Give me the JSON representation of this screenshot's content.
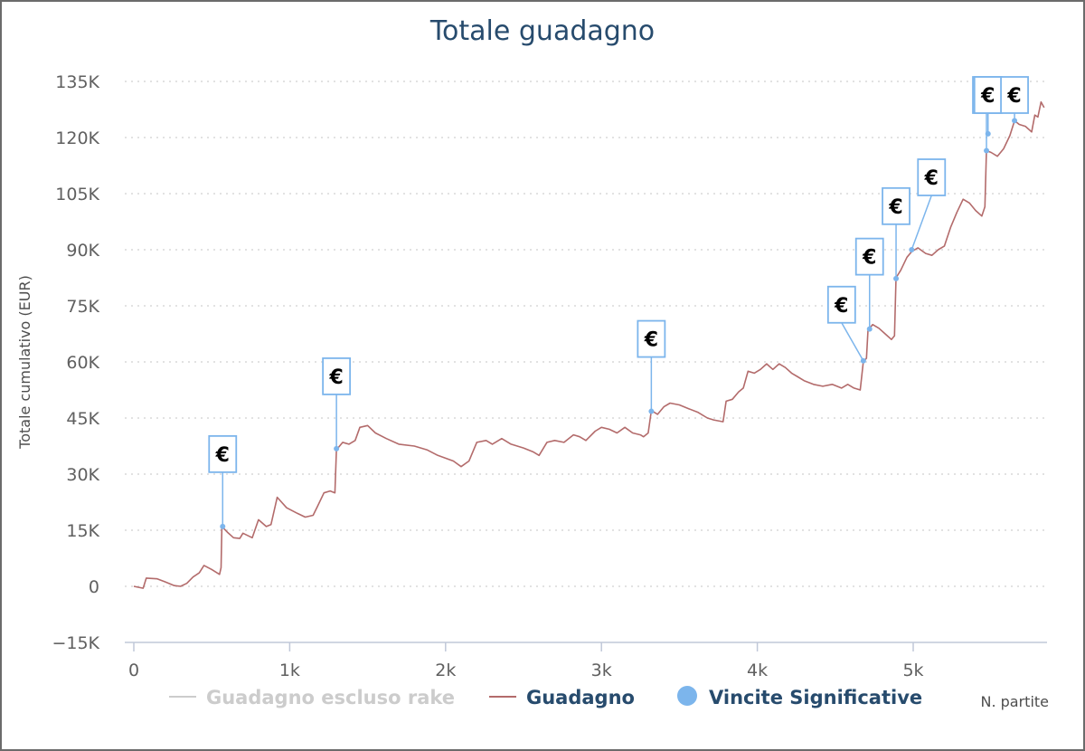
{
  "chart_data": {
    "type": "line",
    "title": "Totale guadagno",
    "ylabel": "Totale cumulativo (EUR)",
    "xlabel": "N. partite",
    "ylim": [
      -15000,
      135000
    ],
    "xlim": [
      0,
      5850
    ],
    "y_ticks": [
      -15000,
      0,
      15000,
      30000,
      45000,
      60000,
      75000,
      90000,
      105000,
      120000,
      135000
    ],
    "y_tick_labels": [
      "−15K",
      "0",
      "15K",
      "30K",
      "45K",
      "60K",
      "75K",
      "90K",
      "105K",
      "120K",
      "135K"
    ],
    "x_ticks": [
      0,
      1000,
      2000,
      3000,
      4000,
      5000
    ],
    "x_tick_labels": [
      "0",
      "1k",
      "2k",
      "3k",
      "4k",
      "5k"
    ],
    "grid": "horizontal dotted",
    "legend_position": "bottom",
    "legend": [
      {
        "name": "Guadagno escluso rake",
        "color": "#cccccc",
        "marker": "line",
        "hidden": true
      },
      {
        "name": "Guadagno",
        "color": "#b36b6b",
        "marker": "line"
      },
      {
        "name": "Vincite Significative",
        "color": "#7cb5ec",
        "marker": "circle"
      }
    ],
    "series": [
      {
        "name": "Guadagno",
        "color": "#b36b6b",
        "points": [
          [
            0,
            0
          ],
          [
            60,
            -500
          ],
          [
            80,
            2200
          ],
          [
            150,
            2000
          ],
          [
            200,
            1200
          ],
          [
            260,
            200
          ],
          [
            300,
            0
          ],
          [
            340,
            800
          ],
          [
            380,
            2500
          ],
          [
            420,
            3600
          ],
          [
            450,
            5600
          ],
          [
            500,
            4500
          ],
          [
            550,
            3200
          ],
          [
            560,
            5000
          ],
          [
            565,
            16000
          ],
          [
            600,
            14500
          ],
          [
            640,
            13000
          ],
          [
            680,
            12800
          ],
          [
            700,
            14200
          ],
          [
            760,
            13000
          ],
          [
            800,
            17800
          ],
          [
            850,
            16000
          ],
          [
            880,
            16500
          ],
          [
            920,
            23800
          ],
          [
            980,
            21000
          ],
          [
            1050,
            19500
          ],
          [
            1100,
            18500
          ],
          [
            1150,
            19000
          ],
          [
            1180,
            21500
          ],
          [
            1220,
            25000
          ],
          [
            1260,
            25500
          ],
          [
            1290,
            25000
          ],
          [
            1300,
            36500
          ],
          [
            1340,
            38500
          ],
          [
            1380,
            38000
          ],
          [
            1420,
            39000
          ],
          [
            1450,
            42500
          ],
          [
            1500,
            43000
          ],
          [
            1550,
            41000
          ],
          [
            1620,
            39500
          ],
          [
            1700,
            38000
          ],
          [
            1800,
            37500
          ],
          [
            1880,
            36500
          ],
          [
            1950,
            35000
          ],
          [
            2050,
            33500
          ],
          [
            2100,
            32000
          ],
          [
            2150,
            33500
          ],
          [
            2200,
            38500
          ],
          [
            2260,
            39000
          ],
          [
            2300,
            38000
          ],
          [
            2360,
            39500
          ],
          [
            2420,
            38000
          ],
          [
            2500,
            37000
          ],
          [
            2560,
            36000
          ],
          [
            2600,
            35000
          ],
          [
            2650,
            38500
          ],
          [
            2700,
            39000
          ],
          [
            2760,
            38500
          ],
          [
            2820,
            40500
          ],
          [
            2860,
            40000
          ],
          [
            2900,
            39000
          ],
          [
            2960,
            41500
          ],
          [
            3000,
            42500
          ],
          [
            3050,
            42000
          ],
          [
            3100,
            41000
          ],
          [
            3150,
            42500
          ],
          [
            3200,
            41000
          ],
          [
            3250,
            40500
          ],
          [
            3270,
            40000
          ],
          [
            3300,
            41000
          ],
          [
            3320,
            47000
          ],
          [
            3360,
            46000
          ],
          [
            3400,
            48000
          ],
          [
            3440,
            49000
          ],
          [
            3500,
            48500
          ],
          [
            3560,
            47500
          ],
          [
            3620,
            46500
          ],
          [
            3680,
            45000
          ],
          [
            3720,
            44500
          ],
          [
            3780,
            44000
          ],
          [
            3800,
            49500
          ],
          [
            3840,
            50000
          ],
          [
            3880,
            52000
          ],
          [
            3910,
            53000
          ],
          [
            3940,
            57500
          ],
          [
            3980,
            57000
          ],
          [
            4020,
            58000
          ],
          [
            4060,
            59500
          ],
          [
            4100,
            58000
          ],
          [
            4140,
            59500
          ],
          [
            4180,
            58500
          ],
          [
            4220,
            57000
          ],
          [
            4260,
            56000
          ],
          [
            4300,
            55000
          ],
          [
            4360,
            54000
          ],
          [
            4420,
            53500
          ],
          [
            4480,
            54000
          ],
          [
            4540,
            53000
          ],
          [
            4580,
            54000
          ],
          [
            4620,
            53000
          ],
          [
            4660,
            52500
          ],
          [
            4680,
            60000
          ],
          [
            4700,
            61000
          ],
          [
            4710,
            68500
          ],
          [
            4740,
            70000
          ],
          [
            4780,
            69000
          ],
          [
            4820,
            67500
          ],
          [
            4860,
            66000
          ],
          [
            4880,
            67000
          ],
          [
            4890,
            82500
          ],
          [
            4920,
            84500
          ],
          [
            4960,
            88000
          ],
          [
            4990,
            89500
          ],
          [
            5030,
            90500
          ],
          [
            5080,
            89000
          ],
          [
            5120,
            88500
          ],
          [
            5160,
            90000
          ],
          [
            5200,
            91000
          ],
          [
            5240,
            96000
          ],
          [
            5280,
            100000
          ],
          [
            5320,
            103500
          ],
          [
            5360,
            102500
          ],
          [
            5400,
            100500
          ],
          [
            5440,
            99000
          ],
          [
            5460,
            101500
          ],
          [
            5470,
            116500
          ],
          [
            5500,
            116000
          ],
          [
            5540,
            115000
          ],
          [
            5580,
            117000
          ],
          [
            5620,
            120500
          ],
          [
            5650,
            124500
          ],
          [
            5680,
            123500
          ],
          [
            5720,
            123000
          ],
          [
            5760,
            121500
          ],
          [
            5780,
            126000
          ],
          [
            5800,
            125500
          ],
          [
            5820,
            129500
          ],
          [
            5840,
            128000
          ]
        ]
      }
    ],
    "markers": {
      "name": "Vincite Significative",
      "label": "€",
      "points": [
        {
          "x": 570,
          "y": 16000
        },
        {
          "x": 1300,
          "y": 36800
        },
        {
          "x": 3320,
          "y": 46800
        },
        {
          "x": 4680,
          "y": 60300
        },
        {
          "x": 4720,
          "y": 68800
        },
        {
          "x": 4890,
          "y": 82300
        },
        {
          "x": 4990,
          "y": 90000
        },
        {
          "x": 5470,
          "y": 116500
        },
        {
          "x": 5480,
          "y": 121000
        },
        {
          "x": 5650,
          "y": 124500
        }
      ]
    }
  }
}
